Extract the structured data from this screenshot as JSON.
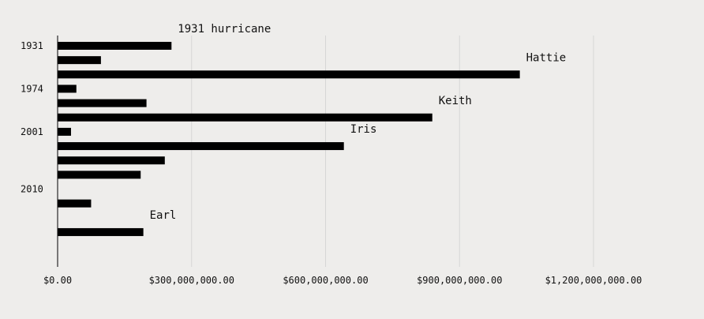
{
  "chart_data": {
    "type": "bar",
    "orientation": "horizontal",
    "title": "",
    "xlabel": "",
    "ylabel": "",
    "xlim": [
      0,
      1200000000
    ],
    "x_ticks": [
      0,
      300000000,
      600000000,
      900000000,
      1200000000
    ],
    "x_tick_labels": [
      "$0.00",
      "$300,000,000.00",
      "$600,000,000.00",
      "$900,000,000.00",
      "$1,200,000,000.00"
    ],
    "grid": "vertical",
    "y_tick_labels": [
      "1931",
      "1974",
      "2001",
      "2010"
    ],
    "bars": [
      {
        "year_group": "1931",
        "value": 255000000
      },
      {
        "year_group": "1931",
        "value": 97000000
      },
      {
        "year_group": "1931",
        "value": 1035000000
      },
      {
        "year_group": "1974",
        "value": 42000000
      },
      {
        "year_group": "1974",
        "value": 199000000
      },
      {
        "year_group": "1974",
        "value": 839000000
      },
      {
        "year_group": "2001",
        "value": 30000000
      },
      {
        "year_group": "2001",
        "value": 641000000
      },
      {
        "year_group": "2001",
        "value": 240000000
      },
      {
        "year_group": "2001",
        "value": 186000000
      },
      {
        "year_group": "2010",
        "value": 0
      },
      {
        "year_group": "2010",
        "value": 75000000
      },
      {
        "year_group": "2010",
        "value": 0
      },
      {
        "year_group": "2010",
        "value": 192000000
      }
    ],
    "annotations": [
      {
        "text": "1931 hurricane",
        "bar_index": 0
      },
      {
        "text": "Hattie",
        "bar_index": 2
      },
      {
        "text": "Keith",
        "bar_index": 5
      },
      {
        "text": "Iris",
        "bar_index": 7
      },
      {
        "text": "Earl",
        "bar_index": 13
      }
    ]
  }
}
